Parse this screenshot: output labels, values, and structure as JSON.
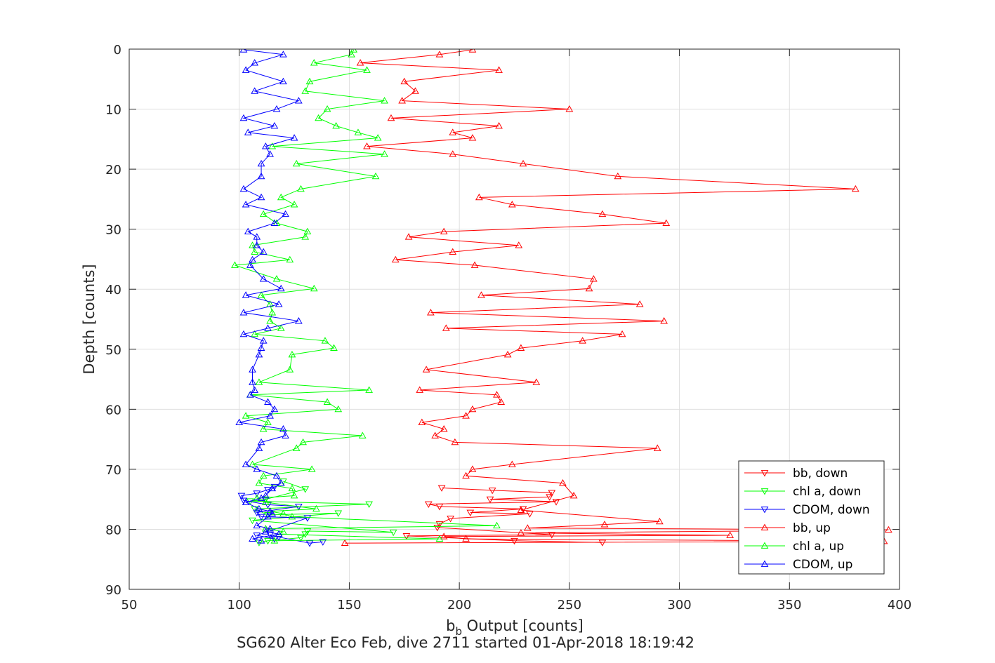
{
  "chart_data": {
    "type": "line",
    "xlabel_main": "b",
    "xlabel_sub": "b",
    "xlabel_rest": " Output [counts]",
    "ylabel": "Depth [counts]",
    "caption": "SG620 Alter Eco Feb, dive 2711 started 01-Apr-2018 18:19:42",
    "xlim": [
      50,
      400
    ],
    "ylim": [
      0,
      90
    ],
    "y_reversed": true,
    "grid": true,
    "legend_position": "bottom-right",
    "xticks": [
      "50",
      "100",
      "150",
      "200",
      "250",
      "300",
      "350",
      "400"
    ],
    "yticks": [
      "0",
      "10",
      "20",
      "30",
      "40",
      "50",
      "60",
      "70",
      "80",
      "90"
    ],
    "colors": {
      "bb": "#ff0000",
      "chl": "#00ff00",
      "cdom": "#0000ff"
    },
    "series": [
      {
        "name": "bb, down",
        "color": "#ff0000",
        "marker": "down",
        "points": [
          [
            265,
            82.2
          ],
          [
            225,
            81.9
          ],
          [
            176,
            81.1
          ],
          [
            242,
            80.9
          ],
          [
            190,
            79.7
          ],
          [
            191,
            79.1
          ],
          [
            196,
            78.2
          ],
          [
            232,
            77.4
          ],
          [
            205,
            77.2
          ],
          [
            229,
            76.6
          ],
          [
            191,
            76.2
          ],
          [
            186,
            75.8
          ],
          [
            244,
            75.4
          ],
          [
            214,
            75.0
          ],
          [
            241,
            74.6
          ],
          [
            242,
            73.9
          ],
          [
            215,
            73.5
          ],
          [
            192,
            73.1
          ]
        ]
      },
      {
        "name": "chl a, down",
        "color": "#00ff00",
        "marker": "down",
        "points": [
          [
            109,
            82.2
          ],
          [
            113,
            81.9
          ],
          [
            128,
            81.4
          ],
          [
            130,
            80.8
          ],
          [
            131,
            80.3
          ],
          [
            170,
            80.5
          ],
          [
            106,
            78.5
          ],
          [
            145,
            77.3
          ],
          [
            113,
            77.6
          ],
          [
            107,
            76.6
          ],
          [
            159,
            75.8
          ],
          [
            105,
            75.3
          ],
          [
            112,
            75.0
          ],
          [
            130,
            73.3
          ],
          [
            120,
            72.0
          ]
        ]
      },
      {
        "name": "CDOM, down",
        "color": "#0000ff",
        "marker": "down",
        "points": [
          [
            138,
            82.1
          ],
          [
            132,
            82.3
          ],
          [
            118,
            81.3
          ],
          [
            114,
            80.9
          ],
          [
            116,
            81.6
          ],
          [
            108,
            81.0
          ],
          [
            131,
            78.1
          ],
          [
            110,
            77.9
          ],
          [
            108,
            77.2
          ],
          [
            127,
            76.2
          ],
          [
            113,
            75.9
          ],
          [
            102,
            75.2
          ],
          [
            101,
            74.4
          ],
          [
            108,
            74.0
          ],
          [
            113,
            73.4
          ],
          [
            116,
            72.9
          ]
        ]
      },
      {
        "name": "bb, up",
        "color": "#ff0000",
        "marker": "up",
        "points": [
          [
            206,
            0.1
          ],
          [
            191,
            0.9
          ],
          [
            155,
            2.3
          ],
          [
            218,
            3.5
          ],
          [
            175,
            5.4
          ],
          [
            180,
            7.0
          ],
          [
            174,
            8.6
          ],
          [
            250,
            10.0
          ],
          [
            169,
            11.5
          ],
          [
            218,
            12.8
          ],
          [
            197,
            13.9
          ],
          [
            206,
            14.8
          ],
          [
            158,
            16.2
          ],
          [
            197,
            17.5
          ],
          [
            229,
            19.1
          ],
          [
            272,
            21.2
          ],
          [
            380,
            23.3
          ],
          [
            209,
            24.7
          ],
          [
            224,
            25.9
          ],
          [
            265,
            27.5
          ],
          [
            294,
            29.0
          ],
          [
            193,
            30.4
          ],
          [
            177,
            31.3
          ],
          [
            227,
            32.7
          ],
          [
            197,
            33.8
          ],
          [
            171,
            35.1
          ],
          [
            207,
            36.0
          ],
          [
            261,
            38.3
          ],
          [
            259,
            39.9
          ],
          [
            210,
            41.0
          ],
          [
            282,
            42.5
          ],
          [
            187,
            43.9
          ],
          [
            293,
            45.3
          ],
          [
            194,
            46.5
          ],
          [
            274,
            47.5
          ],
          [
            256,
            48.6
          ],
          [
            228,
            49.8
          ],
          [
            222,
            50.9
          ],
          [
            185,
            53.4
          ],
          [
            235,
            55.5
          ],
          [
            182,
            56.8
          ],
          [
            217,
            57.6
          ],
          [
            219,
            58.8
          ],
          [
            206,
            60.0
          ],
          [
            203,
            61.1
          ],
          [
            183,
            62.2
          ],
          [
            193,
            63.3
          ],
          [
            189,
            64.4
          ],
          [
            198,
            65.5
          ],
          [
            290,
            66.5
          ],
          [
            224,
            69.2
          ],
          [
            206,
            70.0
          ],
          [
            203,
            71.1
          ],
          [
            247,
            72.3
          ],
          [
            252,
            74.4
          ],
          [
            228,
            76.8
          ],
          [
            291,
            78.7
          ],
          [
            266,
            79.2
          ],
          [
            231,
            79.8
          ],
          [
            395,
            80.1
          ],
          [
            228,
            80.6
          ],
          [
            323,
            81.0
          ],
          [
            193,
            81.2
          ],
          [
            203,
            81.6
          ],
          [
            393,
            82.0
          ],
          [
            148,
            82.3
          ]
        ]
      },
      {
        "name": "chl a, up",
        "color": "#00ff00",
        "marker": "up",
        "points": [
          [
            152,
            0.1
          ],
          [
            151,
            0.9
          ],
          [
            134,
            2.3
          ],
          [
            158,
            3.5
          ],
          [
            132,
            5.4
          ],
          [
            130,
            7.0
          ],
          [
            166,
            8.6
          ],
          [
            140,
            10.0
          ],
          [
            136,
            11.5
          ],
          [
            144,
            12.8
          ],
          [
            154,
            13.9
          ],
          [
            163,
            14.8
          ],
          [
            115,
            16.2
          ],
          [
            166,
            17.5
          ],
          [
            126,
            19.1
          ],
          [
            162,
            21.2
          ],
          [
            128,
            23.3
          ],
          [
            119,
            24.7
          ],
          [
            125,
            25.9
          ],
          [
            111,
            27.5
          ],
          [
            117,
            29.0
          ],
          [
            131,
            30.4
          ],
          [
            130,
            31.3
          ],
          [
            106,
            32.7
          ],
          [
            107,
            33.8
          ],
          [
            123,
            35.1
          ],
          [
            98,
            36.0
          ],
          [
            117,
            38.3
          ],
          [
            134,
            39.9
          ],
          [
            110,
            41.0
          ],
          [
            114,
            42.5
          ],
          [
            115,
            43.9
          ],
          [
            114,
            45.3
          ],
          [
            119,
            46.5
          ],
          [
            107,
            47.5
          ],
          [
            139,
            48.6
          ],
          [
            143,
            49.8
          ],
          [
            124,
            50.9
          ],
          [
            123,
            53.4
          ],
          [
            109,
            55.5
          ],
          [
            159,
            56.8
          ],
          [
            105,
            57.6
          ],
          [
            140,
            58.8
          ],
          [
            145,
            60.0
          ],
          [
            103,
            61.1
          ],
          [
            113,
            62.2
          ],
          [
            111,
            63.3
          ],
          [
            156,
            64.4
          ],
          [
            129,
            65.5
          ],
          [
            126,
            66.5
          ],
          [
            106,
            69.2
          ],
          [
            133,
            70.0
          ],
          [
            111,
            71.1
          ],
          [
            109,
            72.3
          ],
          [
            124,
            73.2
          ],
          [
            125,
            74.4
          ],
          [
            108,
            74.8
          ],
          [
            112,
            75.5
          ],
          [
            135,
            76.6
          ],
          [
            114,
            77.0
          ],
          [
            120,
            77.4
          ],
          [
            124,
            77.9
          ],
          [
            217,
            79.4
          ],
          [
            112,
            79.9
          ],
          [
            120,
            80.4
          ],
          [
            118,
            80.8
          ],
          [
            191,
            81.6
          ],
          [
            116,
            81.9
          ]
        ]
      },
      {
        "name": "CDOM, up",
        "color": "#0000ff",
        "marker": "up",
        "points": [
          [
            102,
            0.1
          ],
          [
            120,
            0.9
          ],
          [
            107,
            2.3
          ],
          [
            103,
            3.5
          ],
          [
            120,
            5.4
          ],
          [
            107,
            7.0
          ],
          [
            127,
            8.6
          ],
          [
            117,
            10.0
          ],
          [
            102,
            11.5
          ],
          [
            116,
            12.8
          ],
          [
            104,
            13.9
          ],
          [
            125,
            14.8
          ],
          [
            112,
            16.2
          ],
          [
            114,
            17.5
          ],
          [
            110,
            19.1
          ],
          [
            110,
            21.2
          ],
          [
            102,
            23.3
          ],
          [
            110,
            24.7
          ],
          [
            103,
            25.9
          ],
          [
            121,
            27.5
          ],
          [
            116,
            29.0
          ],
          [
            104,
            30.4
          ],
          [
            108,
            31.3
          ],
          [
            108,
            32.7
          ],
          [
            111,
            33.8
          ],
          [
            106,
            35.1
          ],
          [
            105,
            36.0
          ],
          [
            111,
            38.3
          ],
          [
            119,
            39.9
          ],
          [
            103,
            41.0
          ],
          [
            118,
            42.5
          ],
          [
            102,
            43.9
          ],
          [
            127,
            45.3
          ],
          [
            113,
            46.5
          ],
          [
            102,
            47.5
          ],
          [
            111,
            48.6
          ],
          [
            110,
            49.8
          ],
          [
            109,
            50.9
          ],
          [
            106,
            53.4
          ],
          [
            106,
            55.5
          ],
          [
            107,
            56.8
          ],
          [
            105,
            57.6
          ],
          [
            113,
            58.8
          ],
          [
            116,
            60.0
          ],
          [
            114,
            61.1
          ],
          [
            100,
            62.2
          ],
          [
            120,
            63.3
          ],
          [
            121,
            64.4
          ],
          [
            110,
            65.5
          ],
          [
            109,
            66.5
          ],
          [
            103,
            69.2
          ],
          [
            108,
            70.0
          ],
          [
            117,
            71.1
          ],
          [
            119,
            72.3
          ],
          [
            115,
            73.2
          ],
          [
            112,
            74.4
          ],
          [
            110,
            74.8
          ],
          [
            103,
            75.5
          ],
          [
            109,
            76.6
          ],
          [
            114,
            77.0
          ],
          [
            115,
            77.4
          ],
          [
            113,
            77.9
          ],
          [
            108,
            79.4
          ],
          [
            114,
            79.9
          ],
          [
            112,
            80.4
          ],
          [
            118,
            80.8
          ],
          [
            106,
            81.6
          ],
          [
            110,
            81.9
          ]
        ]
      }
    ]
  }
}
